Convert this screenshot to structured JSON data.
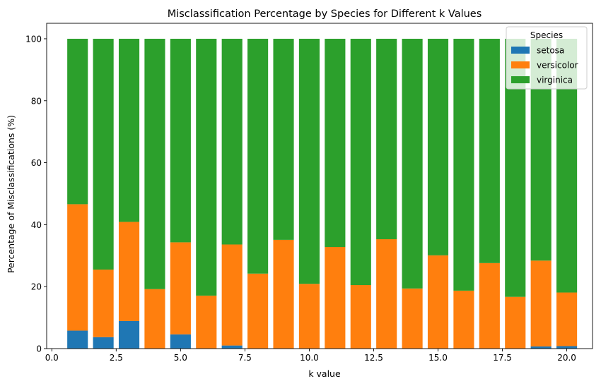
{
  "chart_data": {
    "type": "bar",
    "stacked": true,
    "title": "Misclassification Percentage by Species for Different k Values",
    "xlabel": "k value",
    "ylabel": "Percentage of Misclassifications (%)",
    "x": [
      1,
      2,
      3,
      4,
      5,
      6,
      7,
      8,
      9,
      10,
      11,
      12,
      13,
      14,
      15,
      16,
      17,
      18,
      19,
      20
    ],
    "xlim": [
      -0.2,
      21.0
    ],
    "ylim": [
      0,
      105
    ],
    "xticks": [
      0.0,
      2.5,
      5.0,
      7.5,
      10.0,
      12.5,
      15.0,
      17.5,
      20.0
    ],
    "xtick_labels": [
      "0.0",
      "2.5",
      "5.0",
      "7.5",
      "10.0",
      "12.5",
      "15.0",
      "17.5",
      "20.0"
    ],
    "yticks": [
      0,
      20,
      40,
      60,
      80,
      100
    ],
    "ytick_labels": [
      "0",
      "20",
      "40",
      "60",
      "80",
      "100"
    ],
    "grid": false,
    "legend": {
      "title": "Species",
      "position": "top-right"
    },
    "series": [
      {
        "name": "setosa",
        "color": "#1f77b4",
        "values": [
          5.8,
          3.7,
          8.9,
          0,
          4.6,
          0,
          1.0,
          0,
          0,
          0,
          0,
          0,
          0,
          0,
          0,
          0,
          0,
          0,
          0.7,
          0.8
        ]
      },
      {
        "name": "versicolor",
        "color": "#ff7f0e",
        "values": [
          40.8,
          21.8,
          32.0,
          19.2,
          29.7,
          17.1,
          32.6,
          24.2,
          35.1,
          20.9,
          32.8,
          20.5,
          35.3,
          19.4,
          30.1,
          18.7,
          27.6,
          16.7,
          27.7,
          17.3
        ]
      },
      {
        "name": "virginica",
        "color": "#2ca02c",
        "values": [
          53.4,
          74.5,
          59.1,
          80.8,
          65.7,
          82.9,
          66.4,
          75.8,
          64.9,
          79.1,
          67.2,
          79.5,
          64.7,
          80.6,
          69.9,
          81.3,
          72.4,
          83.3,
          71.6,
          81.9
        ]
      }
    ]
  }
}
